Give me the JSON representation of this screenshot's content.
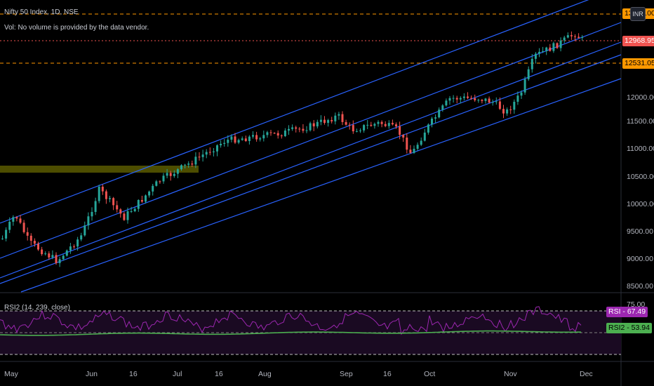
{
  "header": {
    "title": "Nifty 50 Index, 1D, NSE",
    "volume_note": "Vol: No volume is provided by the data vendor."
  },
  "currency_button": "INR",
  "price_axis": {
    "ticks": [
      "12000.00",
      "11500.00",
      "11000.00",
      "10500.00",
      "10000.00",
      "9500.00",
      "9000.00",
      "8500.00"
    ],
    "levels": [
      {
        "label": "13000.00",
        "color": "#ff9800",
        "text_color": "#000000"
      },
      {
        "label": "12968.95",
        "color": "#ef5350",
        "text_color": "#ffffff"
      },
      {
        "label": "12531.05",
        "color": "#ff9800",
        "text_color": "#000000"
      }
    ]
  },
  "indicator": {
    "label": "RSI2 (14, 239, close)",
    "rsi_top_tick": "75.00",
    "rsi_badge": "RSI - 67.49",
    "rsi2_badge": "RSI2 - 53.94",
    "rsi_color": "#9c27b0",
    "rsi2_color": "#4caf50"
  },
  "time_axis": [
    "May",
    "Jun",
    "16",
    "Jul",
    "16",
    "Aug",
    "Sep",
    "16",
    "Oct",
    "Nov",
    "Dec"
  ],
  "colors": {
    "up": "#26a69a",
    "down": "#ef5350",
    "channel": "#2962ff",
    "zone": "#4d4d00"
  }
}
